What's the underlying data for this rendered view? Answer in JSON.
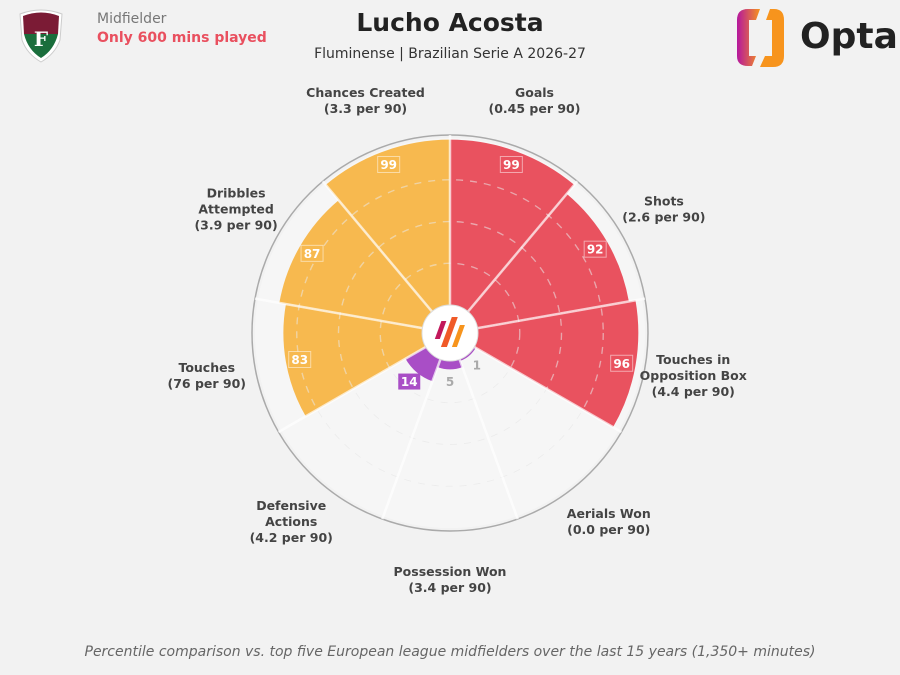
{
  "header": {
    "position": "Midfielder",
    "minutes_note": "Only 600 mins played",
    "player": "Lucho Acosta",
    "subtitle": "Fluminense | Brazilian Serie A 2026-27",
    "club_crest": "Fluminense crest",
    "brand": "Opta"
  },
  "footer": "Percentile comparison vs. top five European league midfielders over the last 15 years (1,350+ minutes)",
  "colors": {
    "attacking": "#e9525f",
    "possession": "#f7b94f",
    "defending": "#a94ec6",
    "background": "#f2f2f2",
    "empty": "#f6f6f6"
  },
  "chart_data": {
    "type": "pizza",
    "value_range": [
      0,
      100
    ],
    "grid": "dashed rings at 25, 50, 75",
    "metrics": [
      {
        "name": "Goals",
        "sub": "(0.45 per 90)",
        "percentile": 99,
        "group": "attacking"
      },
      {
        "name": "Shots",
        "sub": "(2.6 per 90)",
        "percentile": 92,
        "group": "attacking"
      },
      {
        "name": "Touches in Opposition Box",
        "lines": [
          "Touches in",
          "Opposition Box"
        ],
        "sub": "(4.4 per 90)",
        "percentile": 96,
        "group": "attacking"
      },
      {
        "name": "Aerials Won",
        "sub": "(0.0 per 90)",
        "percentile": 1,
        "group": "defending"
      },
      {
        "name": "Possession Won",
        "sub": "(3.4 per 90)",
        "percentile": 5,
        "group": "defending"
      },
      {
        "name": "Defensive Actions",
        "lines": [
          "Defensive",
          "Actions"
        ],
        "sub": "(4.2 per 90)",
        "percentile": 14,
        "group": "defending"
      },
      {
        "name": "Touches",
        "sub": "(76 per 90)",
        "percentile": 83,
        "group": "possession"
      },
      {
        "name": "Dribbles Attempted",
        "lines": [
          "Dribbles",
          "Attempted"
        ],
        "sub": "(3.9 per 90)",
        "percentile": 87,
        "group": "possession"
      },
      {
        "name": "Chances Created",
        "sub": "(3.3 per 90)",
        "percentile": 99,
        "group": "possession"
      }
    ]
  }
}
